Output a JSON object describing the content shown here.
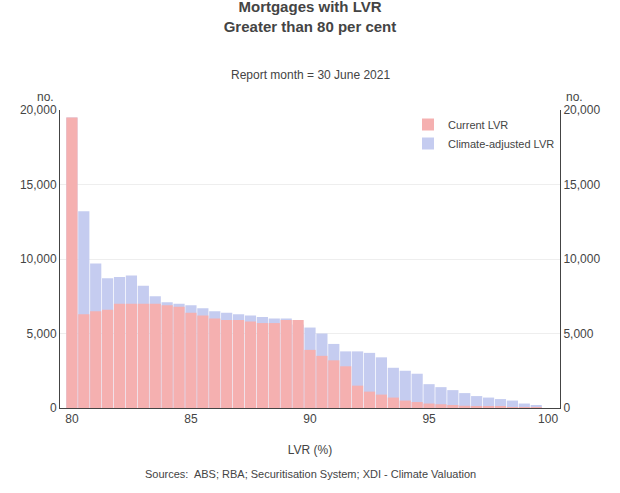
{
  "chart_data": {
    "type": "bar",
    "title": [
      "Mortgages with LVR",
      "Greater than 80 per cent"
    ],
    "subtitle": "Report month = 30 June 2021",
    "x_label": "LVR (%)",
    "y_label": "no.",
    "y2_label": "no.",
    "source": "Sources:  ABS; RBA; Securitisation System; XDI - Climate Valuation",
    "x": [
      80.0,
      80.5,
      81.0,
      81.5,
      82.0,
      82.5,
      83.0,
      83.5,
      84.0,
      84.5,
      85.0,
      85.5,
      86.0,
      86.5,
      87.0,
      87.5,
      88.0,
      88.5,
      89.0,
      89.5,
      90.0,
      90.5,
      91.0,
      91.5,
      92.0,
      92.5,
      93.0,
      93.5,
      94.0,
      94.5,
      95.0,
      95.5,
      96.0,
      96.5,
      97.0,
      97.5,
      98.0,
      98.5,
      99.0,
      99.5
    ],
    "series": [
      {
        "name": "Climate-adjusted LVR",
        "color": "#c5ccf0",
        "values": [
          19500,
          13200,
          9700,
          8700,
          8800,
          8900,
          8200,
          7500,
          7100,
          7000,
          6900,
          6700,
          6500,
          6400,
          6300,
          6200,
          6100,
          6000,
          6000,
          5600,
          5400,
          5000,
          4300,
          3800,
          3800,
          3700,
          3400,
          2700,
          2500,
          2300,
          1600,
          1400,
          1200,
          1000,
          800,
          700,
          600,
          500,
          300,
          200
        ]
      },
      {
        "name": "Current LVR",
        "color": "#f5b0b0",
        "values": [
          19500,
          6300,
          6500,
          6600,
          7000,
          7000,
          7000,
          7000,
          6900,
          6800,
          6400,
          6200,
          6000,
          5900,
          5900,
          5800,
          5700,
          5700,
          5900,
          5900,
          3900,
          3500,
          3200,
          2800,
          1500,
          1100,
          900,
          700,
          500,
          400,
          300,
          250,
          200,
          150,
          120,
          100,
          80,
          60,
          50,
          30
        ]
      }
    ],
    "xlim": [
      79.5,
      100.5
    ],
    "xticks": [
      80,
      85,
      90,
      95,
      100
    ],
    "ylim": [
      0,
      20000
    ],
    "yticks": [
      0,
      {
        "value": 5000,
        "label": "5,000"
      },
      {
        "value": 10000,
        "label": "10,000"
      },
      {
        "value": 15000,
        "label": "15,000"
      },
      {
        "value": 20000,
        "label": "20,000"
      }
    ],
    "y2lim": [
      0,
      20000
    ],
    "y2ticks": [
      0,
      {
        "value": 5000,
        "label": "5,000"
      },
      {
        "value": 10000,
        "label": "10,000"
      },
      {
        "value": 15000,
        "label": "15,000"
      },
      {
        "value": 20000,
        "label": "20,000"
      }
    ],
    "grid": true,
    "legend": "upper right"
  }
}
